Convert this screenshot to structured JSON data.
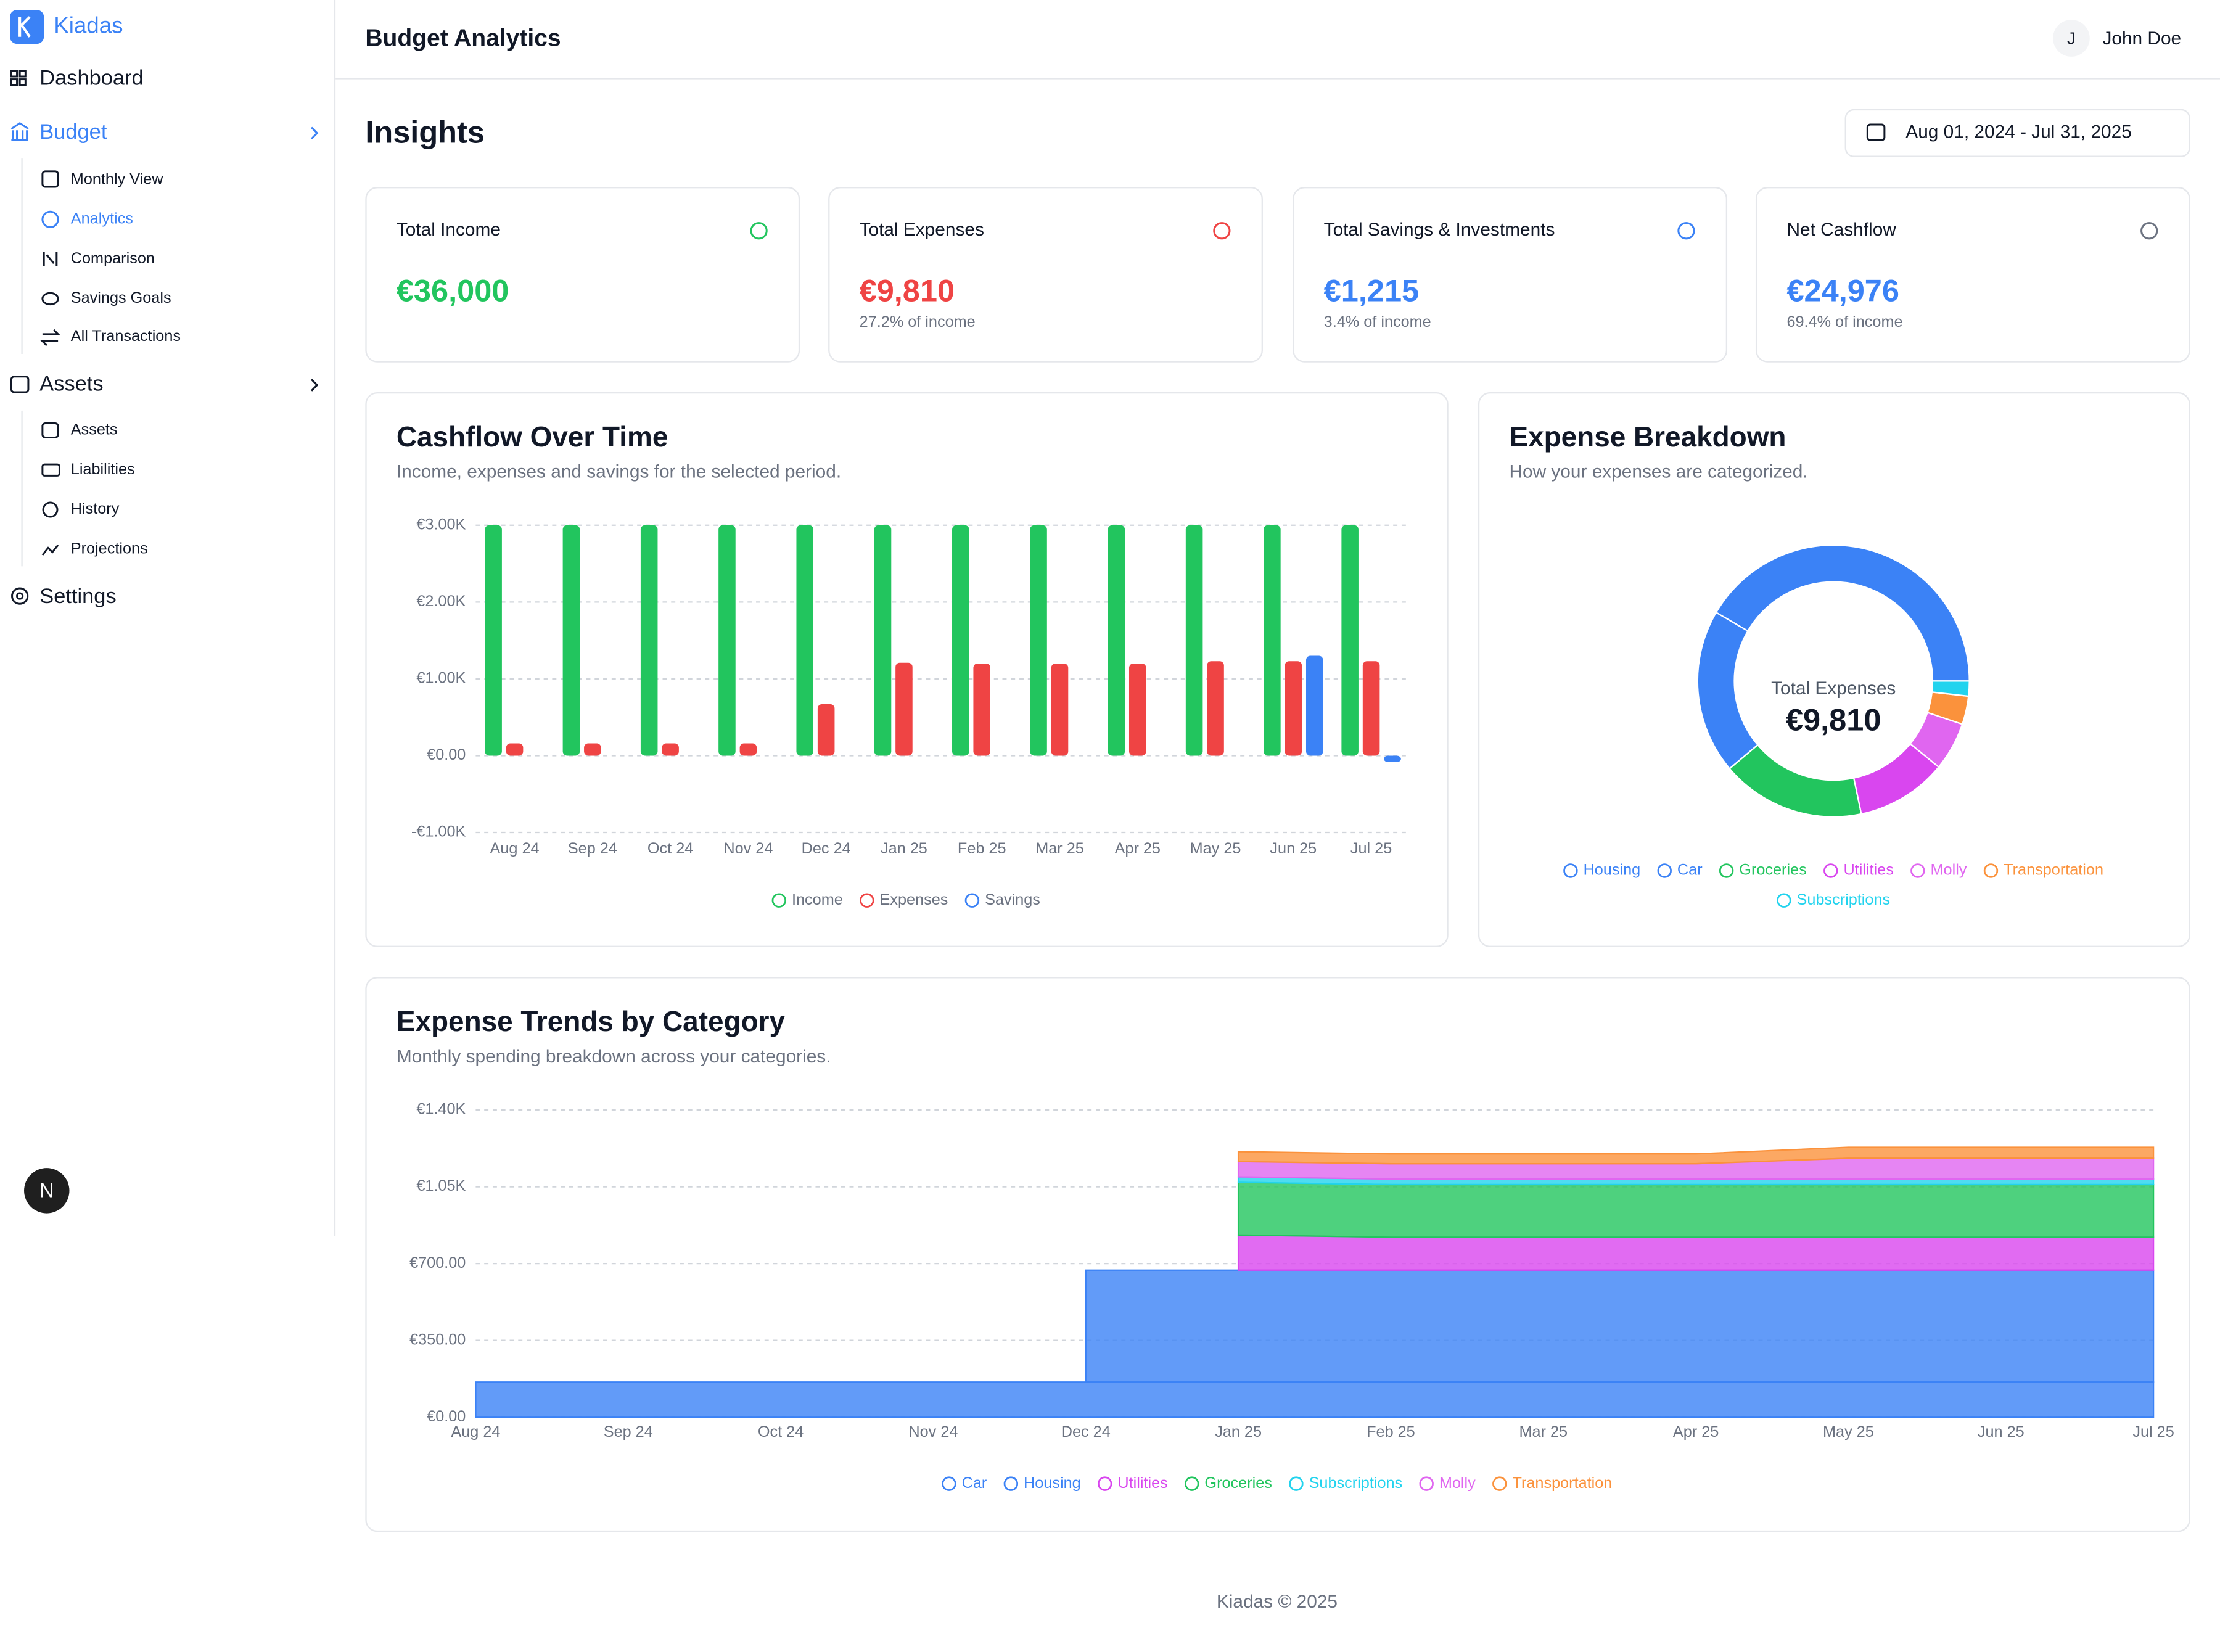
{
  "sidebar": {
    "brand": "Kiadas",
    "nav": [
      {
        "label": "Dashboard"
      },
      {
        "label": "Budget",
        "children": [
          "Monthly View",
          "Analytics",
          "Comparison",
          "Savings Goals",
          "All Transactions"
        ]
      },
      {
        "label": "Assets",
        "children": [
          "Assets",
          "Liabilities",
          "History",
          "Projections"
        ]
      },
      {
        "label": "Settings"
      }
    ]
  },
  "dev_badge": "N",
  "header": {
    "title": "Budget Analytics",
    "user_initial": "J",
    "user_name": "John Doe"
  },
  "page": {
    "title": "Insights",
    "date_range": "Aug 01, 2024 - Jul 31, 2025"
  },
  "kpis": [
    {
      "label": "Total Income",
      "value": "€36,000",
      "color": "#22c55e",
      "icon_color": "#22c55e"
    },
    {
      "label": "Total Expenses",
      "value": "€9,810",
      "note": "27.2% of income",
      "color": "#ef4444",
      "icon_color": "#ef4444"
    },
    {
      "label": "Total Savings & Investments",
      "value": "€1,215",
      "note": "3.4% of income",
      "color": "#3b82f6",
      "icon_color": "#3b82f6"
    },
    {
      "label": "Net Cashflow",
      "value": "€24,976",
      "note": "69.4% of income",
      "color": "#3b82f6",
      "icon_color": "#6b7280"
    }
  ],
  "chart_data": [
    {
      "type": "bar",
      "title": "Cashflow Over Time",
      "subtitle": "Income, expenses and savings for the selected period.",
      "categories": [
        "Aug 24",
        "Sep 24",
        "Oct 24",
        "Nov 24",
        "Dec 24",
        "Jan 25",
        "Feb 25",
        "Mar 25",
        "Apr 25",
        "May 25",
        "Jun 25",
        "Jul 25"
      ],
      "series": [
        {
          "name": "Income",
          "color": "#22c55e",
          "values": [
            3000,
            3000,
            3000,
            3000,
            3000,
            3000,
            3000,
            3000,
            3000,
            3000,
            3000,
            3000
          ]
        },
        {
          "name": "Expenses",
          "color": "#ef4444",
          "values": [
            160,
            160,
            160,
            160,
            670,
            1210,
            1200,
            1200,
            1200,
            1230,
            1230,
            1230
          ]
        },
        {
          "name": "Savings",
          "color": "#3b82f6",
          "values": [
            0,
            0,
            0,
            0,
            0,
            0,
            0,
            0,
            0,
            0,
            1300,
            -85
          ]
        }
      ],
      "ylim": [
        -1000,
        3000
      ],
      "yticks": [
        {
          "value": -1000,
          "label": "-€1.00K"
        },
        {
          "value": 0,
          "label": "€0.00"
        },
        {
          "value": 1000,
          "label": "€1.00K"
        },
        {
          "value": 2000,
          "label": "€2.00K"
        },
        {
          "value": 3000,
          "label": "€3.00K"
        }
      ],
      "grid": true
    },
    {
      "type": "donut",
      "title": "Expense Breakdown",
      "subtitle": "How your expenses are categorized.",
      "center_label": "Total Expenses",
      "center_value": "€9,810",
      "series": [
        {
          "name": "Housing",
          "color": "#3b82f6",
          "values": [
            4080
          ]
        },
        {
          "name": "Car",
          "color": "#3b82f6",
          "values": [
            1920
          ]
        },
        {
          "name": "Groceries",
          "color": "#22c55e",
          "values": [
            1680
          ]
        },
        {
          "name": "Utilities",
          "color": "#d946ef",
          "values": [
            1060
          ]
        },
        {
          "name": "Molly",
          "color": "#e066f0",
          "values": [
            565
          ]
        },
        {
          "name": "Transportation",
          "color": "#fb923c",
          "values": [
            330
          ]
        },
        {
          "name": "Subscriptions",
          "color": "#22d3ee",
          "values": [
            175
          ]
        }
      ]
    },
    {
      "type": "area",
      "stacked": true,
      "title": "Expense Trends by Category",
      "subtitle": "Monthly spending breakdown across your categories.",
      "categories": [
        "Aug 24",
        "Sep 24",
        "Oct 24",
        "Nov 24",
        "Dec 24",
        "Jan 25",
        "Feb 25",
        "Mar 25",
        "Apr 25",
        "May 25",
        "Jun 25",
        "Jul 25"
      ],
      "series": [
        {
          "name": "Car",
          "color": "#3b82f6",
          "values": [
            160,
            160,
            160,
            160,
            160,
            160,
            160,
            160,
            160,
            160,
            160,
            160
          ]
        },
        {
          "name": "Housing",
          "color": "#3b82f6",
          "values": [
            null,
            null,
            null,
            null,
            510,
            510,
            510,
            510,
            510,
            510,
            510,
            510
          ]
        },
        {
          "name": "Utilities",
          "color": "#d946ef",
          "values": [
            null,
            null,
            null,
            null,
            null,
            160,
            150,
            150,
            150,
            150,
            150,
            150
          ]
        },
        {
          "name": "Groceries",
          "color": "#22c55e",
          "values": [
            null,
            null,
            null,
            null,
            null,
            240,
            240,
            240,
            240,
            240,
            240,
            240
          ]
        },
        {
          "name": "Subscriptions",
          "color": "#22d3ee",
          "values": [
            null,
            null,
            null,
            null,
            null,
            25,
            25,
            25,
            25,
            25,
            25,
            25
          ]
        },
        {
          "name": "Molly",
          "color": "#e066f0",
          "values": [
            null,
            null,
            null,
            null,
            null,
            70,
            70,
            70,
            70,
            95,
            95,
            95
          ]
        },
        {
          "name": "Transportation",
          "color": "#fb923c",
          "values": [
            null,
            null,
            null,
            null,
            null,
            45,
            45,
            45,
            45,
            50,
            50,
            50
          ]
        }
      ],
      "ylim": [
        0,
        1400
      ],
      "yticks": [
        {
          "value": 0,
          "label": "€0.00"
        },
        {
          "value": 350,
          "label": "€350.00"
        },
        {
          "value": 700,
          "label": "€700.00"
        },
        {
          "value": 1050,
          "label": "€1.05K"
        },
        {
          "value": 1400,
          "label": "€1.40K"
        }
      ],
      "grid": true
    }
  ],
  "footer": "Kiadas © 2025"
}
